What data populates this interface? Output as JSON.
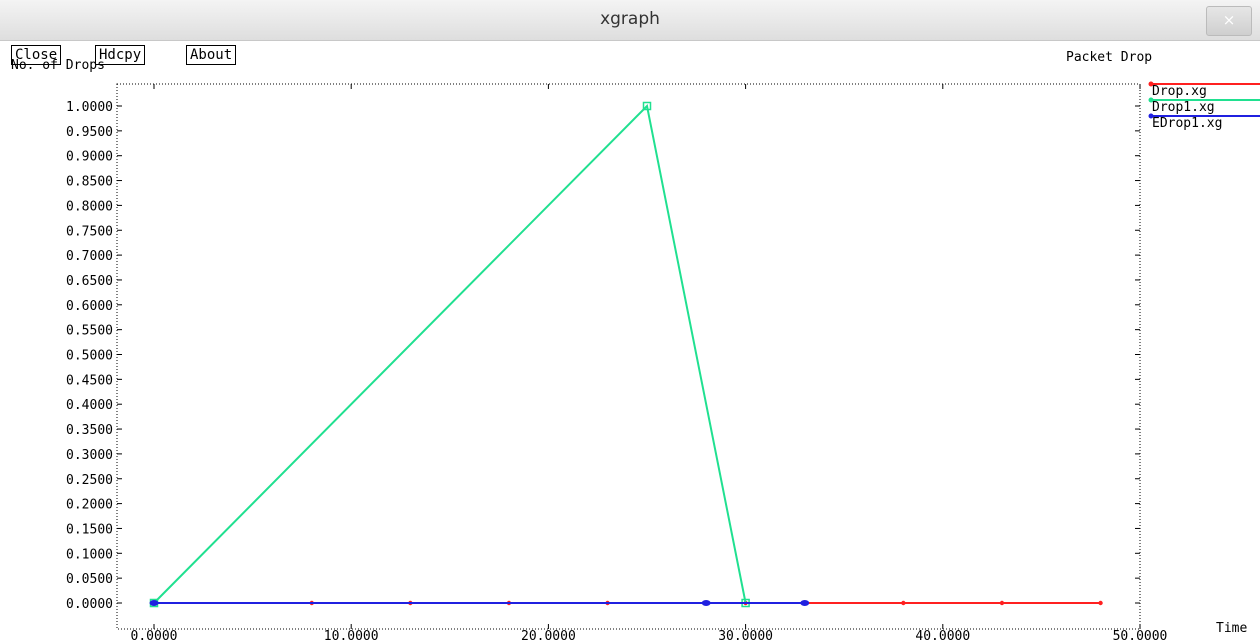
{
  "window": {
    "title": "xgraph",
    "close_glyph": "×"
  },
  "toolbar": {
    "close_label": "Close",
    "hdcpy_label": "Hdcpy",
    "about_label": "About"
  },
  "chart_data": {
    "type": "line",
    "title": "Packet Drop",
    "xlabel": "Time",
    "ylabel": "No. of Drops",
    "xlim": [
      0,
      50
    ],
    "ylim": [
      0,
      1
    ],
    "x_ticks": [
      "0.0000",
      "10.0000",
      "20.0000",
      "30.0000",
      "40.0000",
      "50.0000"
    ],
    "y_ticks": [
      "0.0000",
      "0.0500",
      "0.1000",
      "0.1500",
      "0.2000",
      "0.2500",
      "0.3000",
      "0.3500",
      "0.4000",
      "0.4500",
      "0.5000",
      "0.5500",
      "0.6000",
      "0.6500",
      "0.7000",
      "0.7500",
      "0.8000",
      "0.8500",
      "0.9000",
      "0.9500",
      "1.0000"
    ],
    "grid": false,
    "legend_position": "right",
    "series": [
      {
        "name": "Drop.xg",
        "color": "#ff2020",
        "x": [
          0,
          8,
          13,
          18,
          23,
          28,
          30,
          33,
          38,
          43,
          48
        ],
        "y": [
          0,
          0,
          0,
          0,
          0,
          0,
          0,
          0,
          0,
          0,
          0
        ]
      },
      {
        "name": "Drop1.xg",
        "color": "#20e090",
        "x": [
          0,
          25,
          30
        ],
        "y": [
          0,
          1,
          0
        ]
      },
      {
        "name": "EDrop1.xg",
        "color": "#2020e0",
        "x": [
          0,
          28,
          33
        ],
        "y": [
          0,
          0,
          0
        ]
      }
    ]
  }
}
